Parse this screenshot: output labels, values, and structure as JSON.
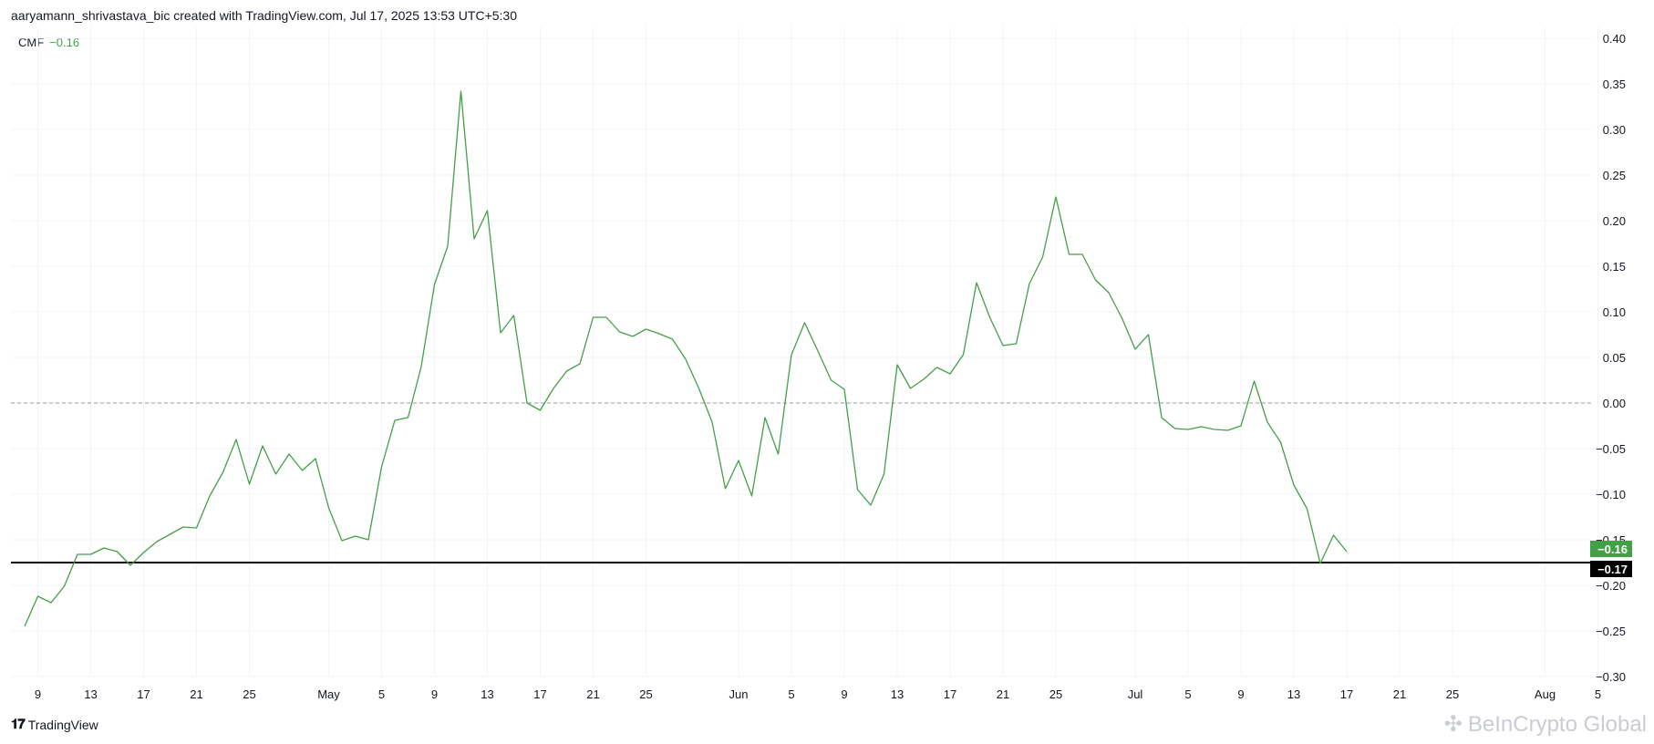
{
  "header": {
    "attribution": "aaryamann_shrivastava_bic created with TradingView.com, Jul 17, 2025 13:53 UTC+5:30"
  },
  "legend": {
    "name": "CMF",
    "value": "−0.16"
  },
  "footer": {
    "logo_text": "TradingView",
    "watermark": "BeInCrypto Global"
  },
  "icons": {
    "tradingview": "tradingview-logo-icon",
    "watermark": "beincrypto-logo-icon"
  },
  "colors": {
    "line": "#43a047",
    "level_line": "#000000",
    "zero_line": "#9598a1",
    "grid": "#f0f3fa"
  },
  "chart_data": {
    "type": "line",
    "series": [
      {
        "name": "CMF",
        "x": [
          "2025-04-08",
          "2025-04-09",
          "2025-04-10",
          "2025-04-11",
          "2025-04-12",
          "2025-04-13",
          "2025-04-14",
          "2025-04-15",
          "2025-04-16",
          "2025-04-17",
          "2025-04-18",
          "2025-04-19",
          "2025-04-20",
          "2025-04-21",
          "2025-04-22",
          "2025-04-23",
          "2025-04-24",
          "2025-04-25",
          "2025-04-26",
          "2025-04-27",
          "2025-04-28",
          "2025-04-29",
          "2025-04-30",
          "2025-05-01",
          "2025-05-02",
          "2025-05-03",
          "2025-05-04",
          "2025-05-05",
          "2025-05-06",
          "2025-05-07",
          "2025-05-08",
          "2025-05-09",
          "2025-05-10",
          "2025-05-11",
          "2025-05-12",
          "2025-05-13",
          "2025-05-14",
          "2025-05-15",
          "2025-05-16",
          "2025-05-17",
          "2025-05-18",
          "2025-05-19",
          "2025-05-20",
          "2025-05-21",
          "2025-05-22",
          "2025-05-23",
          "2025-05-24",
          "2025-05-25",
          "2025-05-26",
          "2025-05-27",
          "2025-05-28",
          "2025-05-29",
          "2025-05-30",
          "2025-05-31",
          "2025-06-01",
          "2025-06-02",
          "2025-06-03",
          "2025-06-04",
          "2025-06-05",
          "2025-06-06",
          "2025-06-07",
          "2025-06-08",
          "2025-06-09",
          "2025-06-10",
          "2025-06-11",
          "2025-06-12",
          "2025-06-13",
          "2025-06-14",
          "2025-06-15",
          "2025-06-16",
          "2025-06-17",
          "2025-06-18",
          "2025-06-19",
          "2025-06-20",
          "2025-06-21",
          "2025-06-22",
          "2025-06-23",
          "2025-06-24",
          "2025-06-25",
          "2025-06-26",
          "2025-06-27",
          "2025-06-28",
          "2025-06-29",
          "2025-06-30",
          "2025-07-01",
          "2025-07-02",
          "2025-07-03",
          "2025-07-04",
          "2025-07-05",
          "2025-07-06",
          "2025-07-07",
          "2025-07-08",
          "2025-07-09",
          "2025-07-10",
          "2025-07-11",
          "2025-07-12",
          "2025-07-13",
          "2025-07-14",
          "2025-07-15",
          "2025-07-16",
          "2025-07-17"
        ],
        "values": [
          -0.245,
          -0.212,
          -0.219,
          -0.201,
          -0.166,
          -0.166,
          -0.159,
          -0.163,
          -0.178,
          -0.164,
          -0.152,
          -0.144,
          -0.136,
          -0.137,
          -0.102,
          -0.076,
          -0.04,
          -0.089,
          -0.047,
          -0.078,
          -0.056,
          -0.074,
          -0.061,
          -0.115,
          -0.151,
          -0.146,
          -0.15,
          -0.07,
          -0.019,
          -0.016,
          0.04,
          0.13,
          0.172,
          0.342,
          0.18,
          0.211,
          0.077,
          0.096,
          0.0,
          -0.008,
          0.016,
          0.035,
          0.043,
          0.094,
          0.094,
          0.078,
          0.073,
          0.081,
          0.076,
          0.07,
          0.048,
          0.016,
          -0.021,
          -0.094,
          -0.063,
          -0.102,
          -0.016,
          -0.056,
          0.053,
          0.088,
          0.057,
          0.025,
          0.015,
          -0.095,
          -0.112,
          -0.078,
          0.042,
          0.016,
          0.026,
          0.039,
          0.032,
          0.053,
          0.132,
          0.094,
          0.063,
          0.065,
          0.131,
          0.16,
          0.226,
          0.163,
          0.163,
          0.135,
          0.121,
          0.093,
          0.059,
          0.075,
          -0.016,
          -0.028,
          -0.029,
          -0.026,
          -0.029,
          -0.03,
          -0.025,
          0.024,
          -0.021,
          -0.043,
          -0.09,
          -0.116,
          -0.176,
          -0.145,
          -0.163
        ]
      }
    ],
    "xlabel": "",
    "ylabel": "",
    "xlim": [
      "2025-04-08",
      "2025-08-05"
    ],
    "ylim": [
      -0.3,
      0.4
    ],
    "y_ticks": [
      "0.40",
      "0.35",
      "0.30",
      "0.25",
      "0.20",
      "0.15",
      "0.10",
      "0.05",
      "0.00",
      "−0.05",
      "−0.10",
      "−0.15",
      "−0.20",
      "−0.25",
      "−0.30"
    ],
    "y_tick_values": [
      0.4,
      0.35,
      0.3,
      0.25,
      0.2,
      0.15,
      0.1,
      0.05,
      0.0,
      -0.05,
      -0.1,
      -0.15,
      -0.2,
      -0.25,
      -0.3
    ],
    "x_ticks": [
      {
        "date": "2025-04-09",
        "label": "9"
      },
      {
        "date": "2025-04-13",
        "label": "13"
      },
      {
        "date": "2025-04-17",
        "label": "17"
      },
      {
        "date": "2025-04-21",
        "label": "21"
      },
      {
        "date": "2025-04-25",
        "label": "25"
      },
      {
        "date": "2025-05-01",
        "label": "May"
      },
      {
        "date": "2025-05-05",
        "label": "5"
      },
      {
        "date": "2025-05-09",
        "label": "9"
      },
      {
        "date": "2025-05-13",
        "label": "13"
      },
      {
        "date": "2025-05-17",
        "label": "17"
      },
      {
        "date": "2025-05-21",
        "label": "21"
      },
      {
        "date": "2025-05-25",
        "label": "25"
      },
      {
        "date": "2025-06-01",
        "label": "Jun"
      },
      {
        "date": "2025-06-05",
        "label": "5"
      },
      {
        "date": "2025-06-09",
        "label": "9"
      },
      {
        "date": "2025-06-13",
        "label": "13"
      },
      {
        "date": "2025-06-17",
        "label": "17"
      },
      {
        "date": "2025-06-21",
        "label": "21"
      },
      {
        "date": "2025-06-25",
        "label": "25"
      },
      {
        "date": "2025-07-01",
        "label": "Jul"
      },
      {
        "date": "2025-07-05",
        "label": "5"
      },
      {
        "date": "2025-07-09",
        "label": "9"
      },
      {
        "date": "2025-07-13",
        "label": "13"
      },
      {
        "date": "2025-07-17",
        "label": "17"
      },
      {
        "date": "2025-07-21",
        "label": "21"
      },
      {
        "date": "2025-07-25",
        "label": "25"
      },
      {
        "date": "2025-08-01",
        "label": "Aug"
      },
      {
        "date": "2025-08-05",
        "label": "5"
      }
    ],
    "reference_lines": [
      {
        "value": 0.0,
        "style": "dashed"
      },
      {
        "value": -0.175,
        "style": "solid"
      }
    ],
    "price_badges": [
      {
        "value": -0.16,
        "label": "−0.16",
        "color": "#43a047"
      },
      {
        "value": -0.175,
        "label": "−0.17",
        "color": "#000000"
      }
    ],
    "grid": true,
    "legend_position": "top-left"
  }
}
